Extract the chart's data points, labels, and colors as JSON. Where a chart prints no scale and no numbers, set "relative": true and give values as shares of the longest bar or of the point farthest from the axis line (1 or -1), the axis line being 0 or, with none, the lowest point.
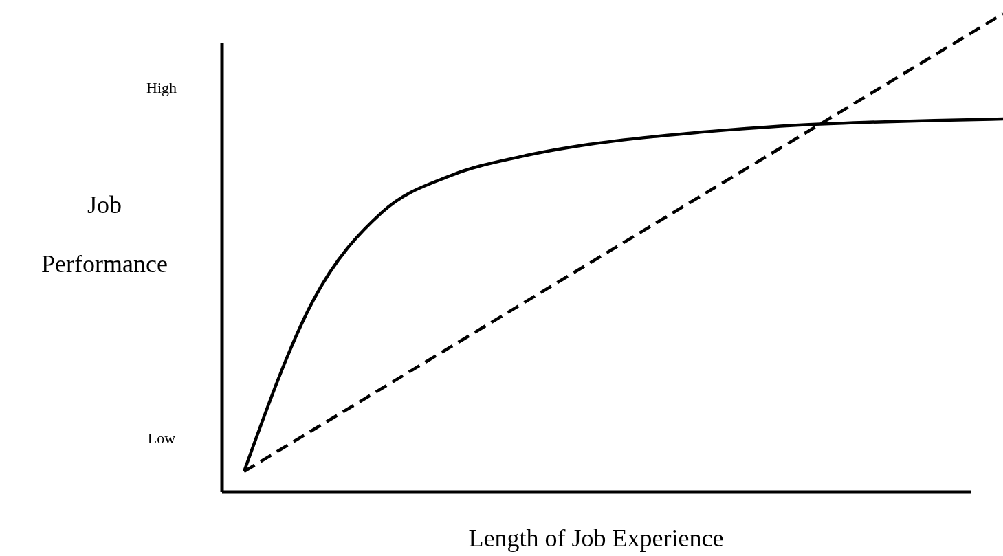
{
  "chart_data": {
    "type": "line",
    "relative": true,
    "xlabel": "Length of Job Experience",
    "ylabel": "Job Performance",
    "annotations": [
      "High",
      "Low"
    ],
    "categories": [
      null,
      null,
      null,
      null,
      null,
      null,
      null,
      null,
      null,
      null,
      null,
      null
    ],
    "series": [
      {
        "color": "#000000",
        "line_style": "solid",
        "values": [
          0.043,
          0.4,
          0.585,
          0.662,
          0.701,
          0.727,
          0.744,
          0.757,
          0.767,
          0.773,
          0.777,
          0.78
        ]
      },
      {
        "color": "#000000",
        "line_style": "dashed",
        "values": [
          0.043,
          0.13,
          0.217,
          0.304,
          0.391,
          0.478,
          0.565,
          0.652,
          0.739,
          0.826,
          0.913,
          1.0
        ]
      }
    ],
    "marker": "none"
  }
}
